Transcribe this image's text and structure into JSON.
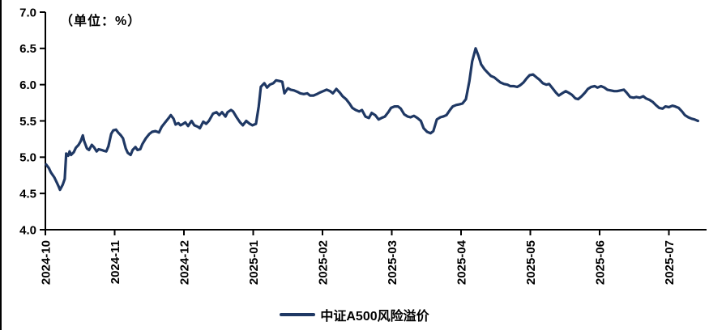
{
  "chart_data": {
    "type": "line",
    "title": "",
    "unit_label": "（单位：%）",
    "ylabel": "",
    "xlabel": "",
    "ylim": [
      4.0,
      7.0
    ],
    "yticks": [
      4.0,
      4.5,
      5.0,
      5.5,
      6.0,
      6.5,
      7.0
    ],
    "xticks": [
      "2024-10",
      "2024-11",
      "2024-12",
      "2025-01",
      "2025-02",
      "2025-03",
      "2025-04",
      "2025-05",
      "2025-06",
      "2025-07"
    ],
    "grid": false,
    "legend_position": "bottom-center",
    "series": [
      {
        "name": "中证A500风险溢价",
        "color": "#1f3864",
        "x_unit": "months-from-2024-10",
        "points": [
          [
            0.01,
            4.9
          ],
          [
            0.05,
            4.85
          ],
          [
            0.08,
            4.79
          ],
          [
            0.13,
            4.72
          ],
          [
            0.16,
            4.66
          ],
          [
            0.19,
            4.6
          ],
          [
            0.21,
            4.55
          ],
          [
            0.25,
            4.62
          ],
          [
            0.28,
            4.7
          ],
          [
            0.3,
            5.05
          ],
          [
            0.33,
            5.02
          ],
          [
            0.35,
            5.08
          ],
          [
            0.37,
            5.03
          ],
          [
            0.41,
            5.07
          ],
          [
            0.44,
            5.13
          ],
          [
            0.48,
            5.17
          ],
          [
            0.51,
            5.22
          ],
          [
            0.54,
            5.3
          ],
          [
            0.56,
            5.22
          ],
          [
            0.6,
            5.12
          ],
          [
            0.63,
            5.1
          ],
          [
            0.67,
            5.17
          ],
          [
            0.7,
            5.14
          ],
          [
            0.74,
            5.08
          ],
          [
            0.77,
            5.11
          ],
          [
            0.81,
            5.1
          ],
          [
            0.84,
            5.09
          ],
          [
            0.88,
            5.08
          ],
          [
            0.91,
            5.15
          ],
          [
            0.95,
            5.32
          ],
          [
            0.98,
            5.37
          ],
          [
            1.02,
            5.38
          ],
          [
            1.05,
            5.34
          ],
          [
            1.09,
            5.3
          ],
          [
            1.12,
            5.26
          ],
          [
            1.16,
            5.12
          ],
          [
            1.19,
            5.06
          ],
          [
            1.23,
            5.03
          ],
          [
            1.26,
            5.1
          ],
          [
            1.3,
            5.14
          ],
          [
            1.33,
            5.1
          ],
          [
            1.37,
            5.11
          ],
          [
            1.4,
            5.18
          ],
          [
            1.45,
            5.26
          ],
          [
            1.5,
            5.32
          ],
          [
            1.54,
            5.35
          ],
          [
            1.59,
            5.36
          ],
          [
            1.64,
            5.34
          ],
          [
            1.68,
            5.42
          ],
          [
            1.73,
            5.48
          ],
          [
            1.78,
            5.54
          ],
          [
            1.81,
            5.58
          ],
          [
            1.85,
            5.53
          ],
          [
            1.88,
            5.45
          ],
          [
            1.92,
            5.47
          ],
          [
            1.95,
            5.44
          ],
          [
            1.99,
            5.46
          ],
          [
            2.02,
            5.48
          ],
          [
            2.06,
            5.43
          ],
          [
            2.11,
            5.5
          ],
          [
            2.15,
            5.44
          ],
          [
            2.2,
            5.42
          ],
          [
            2.23,
            5.4
          ],
          [
            2.28,
            5.49
          ],
          [
            2.32,
            5.46
          ],
          [
            2.36,
            5.5
          ],
          [
            2.42,
            5.6
          ],
          [
            2.47,
            5.62
          ],
          [
            2.51,
            5.58
          ],
          [
            2.55,
            5.62
          ],
          [
            2.6,
            5.56
          ],
          [
            2.63,
            5.62
          ],
          [
            2.68,
            5.65
          ],
          [
            2.71,
            5.63
          ],
          [
            2.76,
            5.55
          ],
          [
            2.81,
            5.48
          ],
          [
            2.85,
            5.44
          ],
          [
            2.9,
            5.5
          ],
          [
            2.95,
            5.46
          ],
          [
            2.99,
            5.44
          ],
          [
            3.04,
            5.46
          ],
          [
            3.08,
            5.7
          ],
          [
            3.11,
            5.97
          ],
          [
            3.16,
            6.02
          ],
          [
            3.2,
            5.96
          ],
          [
            3.24,
            6.0
          ],
          [
            3.29,
            6.02
          ],
          [
            3.33,
            6.06
          ],
          [
            3.38,
            6.05
          ],
          [
            3.42,
            6.04
          ],
          [
            3.45,
            5.88
          ],
          [
            3.5,
            5.95
          ],
          [
            3.54,
            5.93
          ],
          [
            3.59,
            5.92
          ],
          [
            3.64,
            5.9
          ],
          [
            3.68,
            5.88
          ],
          [
            3.73,
            5.87
          ],
          [
            3.78,
            5.88
          ],
          [
            3.82,
            5.85
          ],
          [
            3.87,
            5.85
          ],
          [
            3.92,
            5.87
          ],
          [
            3.96,
            5.89
          ],
          [
            4.01,
            5.91
          ],
          [
            4.06,
            5.93
          ],
          [
            4.11,
            5.91
          ],
          [
            4.15,
            5.88
          ],
          [
            4.2,
            5.94
          ],
          [
            4.25,
            5.89
          ],
          [
            4.29,
            5.84
          ],
          [
            4.34,
            5.8
          ],
          [
            4.39,
            5.74
          ],
          [
            4.43,
            5.68
          ],
          [
            4.48,
            5.65
          ],
          [
            4.53,
            5.63
          ],
          [
            4.57,
            5.65
          ],
          [
            4.62,
            5.56
          ],
          [
            4.67,
            5.54
          ],
          [
            4.71,
            5.61
          ],
          [
            4.76,
            5.58
          ],
          [
            4.81,
            5.52
          ],
          [
            4.85,
            5.54
          ],
          [
            4.9,
            5.56
          ],
          [
            4.95,
            5.62
          ],
          [
            4.99,
            5.68
          ],
          [
            5.04,
            5.7
          ],
          [
            5.09,
            5.7
          ],
          [
            5.13,
            5.67
          ],
          [
            5.18,
            5.59
          ],
          [
            5.23,
            5.56
          ],
          [
            5.27,
            5.55
          ],
          [
            5.32,
            5.57
          ],
          [
            5.37,
            5.54
          ],
          [
            5.42,
            5.5
          ],
          [
            5.46,
            5.4
          ],
          [
            5.51,
            5.35
          ],
          [
            5.56,
            5.33
          ],
          [
            5.6,
            5.36
          ],
          [
            5.65,
            5.52
          ],
          [
            5.7,
            5.55
          ],
          [
            5.74,
            5.56
          ],
          [
            5.79,
            5.58
          ],
          [
            5.84,
            5.65
          ],
          [
            5.88,
            5.7
          ],
          [
            5.93,
            5.72
          ],
          [
            5.98,
            5.73
          ],
          [
            6.02,
            5.74
          ],
          [
            6.07,
            5.8
          ],
          [
            6.12,
            6.05
          ],
          [
            6.16,
            6.32
          ],
          [
            6.21,
            6.5
          ],
          [
            6.25,
            6.4
          ],
          [
            6.29,
            6.28
          ],
          [
            6.34,
            6.21
          ],
          [
            6.39,
            6.16
          ],
          [
            6.43,
            6.12
          ],
          [
            6.48,
            6.1
          ],
          [
            6.53,
            6.06
          ],
          [
            6.57,
            6.03
          ],
          [
            6.62,
            6.01
          ],
          [
            6.67,
            6.0
          ],
          [
            6.71,
            5.98
          ],
          [
            6.76,
            5.98
          ],
          [
            6.81,
            5.97
          ],
          [
            6.85,
            5.99
          ],
          [
            6.9,
            6.03
          ],
          [
            6.95,
            6.09
          ],
          [
            6.99,
            6.13
          ],
          [
            7.04,
            6.14
          ],
          [
            7.09,
            6.1
          ],
          [
            7.13,
            6.07
          ],
          [
            7.18,
            6.02
          ],
          [
            7.23,
            6.0
          ],
          [
            7.27,
            6.01
          ],
          [
            7.32,
            5.95
          ],
          [
            7.37,
            5.89
          ],
          [
            7.41,
            5.85
          ],
          [
            7.46,
            5.88
          ],
          [
            7.51,
            5.91
          ],
          [
            7.55,
            5.89
          ],
          [
            7.6,
            5.86
          ],
          [
            7.65,
            5.81
          ],
          [
            7.69,
            5.8
          ],
          [
            7.74,
            5.84
          ],
          [
            7.79,
            5.89
          ],
          [
            7.83,
            5.94
          ],
          [
            7.88,
            5.97
          ],
          [
            7.93,
            5.98
          ],
          [
            7.97,
            5.96
          ],
          [
            8.02,
            5.98
          ],
          [
            8.07,
            5.96
          ],
          [
            8.11,
            5.93
          ],
          [
            8.16,
            5.92
          ],
          [
            8.21,
            5.91
          ],
          [
            8.25,
            5.91
          ],
          [
            8.3,
            5.92
          ],
          [
            8.35,
            5.93
          ],
          [
            8.39,
            5.89
          ],
          [
            8.44,
            5.83
          ],
          [
            8.49,
            5.82
          ],
          [
            8.53,
            5.83
          ],
          [
            8.58,
            5.82
          ],
          [
            8.63,
            5.84
          ],
          [
            8.67,
            5.81
          ],
          [
            8.72,
            5.79
          ],
          [
            8.77,
            5.76
          ],
          [
            8.81,
            5.72
          ],
          [
            8.86,
            5.68
          ],
          [
            8.91,
            5.67
          ],
          [
            8.95,
            5.7
          ],
          [
            9.0,
            5.69
          ],
          [
            9.05,
            5.71
          ],
          [
            9.09,
            5.7
          ],
          [
            9.14,
            5.68
          ],
          [
            9.19,
            5.63
          ],
          [
            9.23,
            5.58
          ],
          [
            9.28,
            5.55
          ],
          [
            9.33,
            5.53
          ],
          [
            9.37,
            5.52
          ],
          [
            9.42,
            5.5
          ]
        ]
      }
    ]
  }
}
